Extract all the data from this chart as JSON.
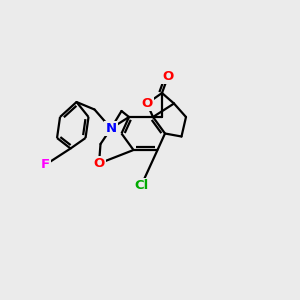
{
  "background_color": "#EBEBEB",
  "bond_color": "#000000",
  "atom_colors": {
    "O": "#FF0000",
    "N": "#0000FF",
    "F": "#FF00FF",
    "Cl": "#00AA00",
    "C": "#000000"
  },
  "figsize": [
    3.0,
    3.0
  ],
  "dpi": 100
}
